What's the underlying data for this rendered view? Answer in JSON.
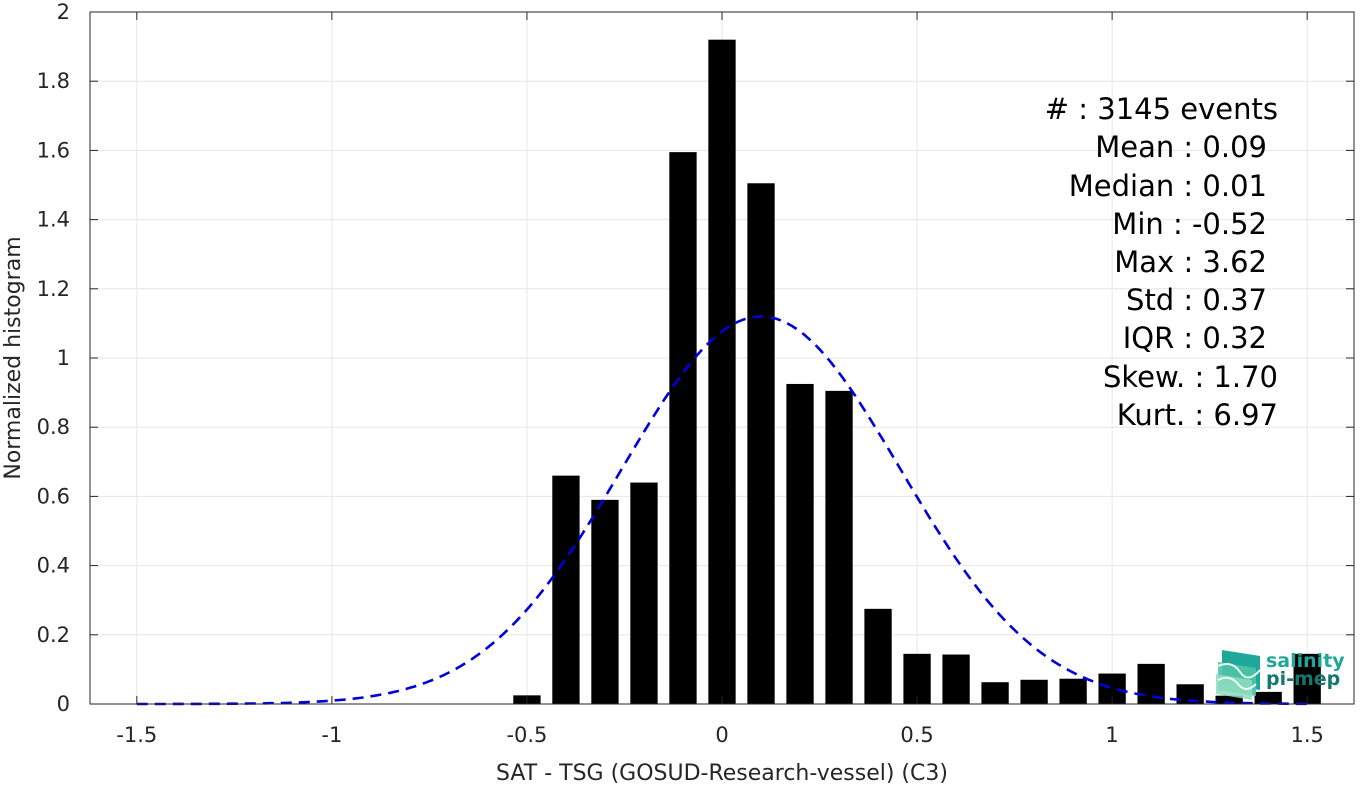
{
  "chart_data": {
    "type": "bar",
    "xlabel": "SAT - TSG (GOSUD-Research-vessel) (C3)",
    "ylabel": "Normalized histogram",
    "xlim": [
      -1.62,
      1.62
    ],
    "ylim": [
      0,
      2
    ],
    "grid": true,
    "xticks": [
      -1.5,
      -1,
      -0.5,
      0,
      0.5,
      1,
      1.5
    ],
    "xtick_labels": [
      "-1.5",
      "-1",
      "-0.5",
      "0",
      "0.5",
      "1",
      "1.5"
    ],
    "yticks": [
      0,
      0.2,
      0.4,
      0.6,
      0.8,
      1,
      1.2,
      1.4,
      1.6,
      1.8,
      2
    ],
    "ytick_labels": [
      "0",
      "0.2",
      "0.4",
      "0.6",
      "0.8",
      "1",
      "1.2",
      "1.4",
      "1.6",
      "1.8",
      "2"
    ],
    "bar_width": 0.07,
    "bar_color": "#000000",
    "bars": [
      {
        "x": -0.5,
        "y": 0.025
      },
      {
        "x": -0.4,
        "y": 0.66
      },
      {
        "x": -0.3,
        "y": 0.59
      },
      {
        "x": -0.2,
        "y": 0.64
      },
      {
        "x": -0.1,
        "y": 1.595
      },
      {
        "x": 0.0,
        "y": 1.92
      },
      {
        "x": 0.1,
        "y": 1.505
      },
      {
        "x": 0.2,
        "y": 0.925
      },
      {
        "x": 0.3,
        "y": 0.905
      },
      {
        "x": 0.4,
        "y": 0.275
      },
      {
        "x": 0.5,
        "y": 0.145
      },
      {
        "x": 0.6,
        "y": 0.143
      },
      {
        "x": 0.7,
        "y": 0.063
      },
      {
        "x": 0.8,
        "y": 0.07
      },
      {
        "x": 0.9,
        "y": 0.073
      },
      {
        "x": 1.0,
        "y": 0.088
      },
      {
        "x": 1.1,
        "y": 0.116
      },
      {
        "x": 1.2,
        "y": 0.057
      },
      {
        "x": 1.3,
        "y": 0.024
      },
      {
        "x": 1.4,
        "y": 0.035
      },
      {
        "x": 1.5,
        "y": 0.145
      }
    ],
    "fit_curve": {
      "color": "#0000dd",
      "style": "dashed",
      "mean": 0.1,
      "std": 0.357,
      "peak": 1.12,
      "x_range": [
        -1.5,
        1.5
      ]
    },
    "stats": {
      "events": "#  : 3145 events",
      "mean": "Mean : 0.09",
      "median": "Median : 0.01",
      "min": "Min : -0.52",
      "max": "Max : 3.62",
      "std": "Std : 0.37",
      "iqr": "IQR : 0.32",
      "skew": "Skew. : 1.70",
      "kurt": "Kurt. : 6.97"
    }
  },
  "logo": {
    "line1": "salinity",
    "line2": "pi-mep",
    "icon": "salinity-pi-mep-logo-icon",
    "colors": [
      "#1fa89a",
      "#7fd6b8"
    ]
  }
}
